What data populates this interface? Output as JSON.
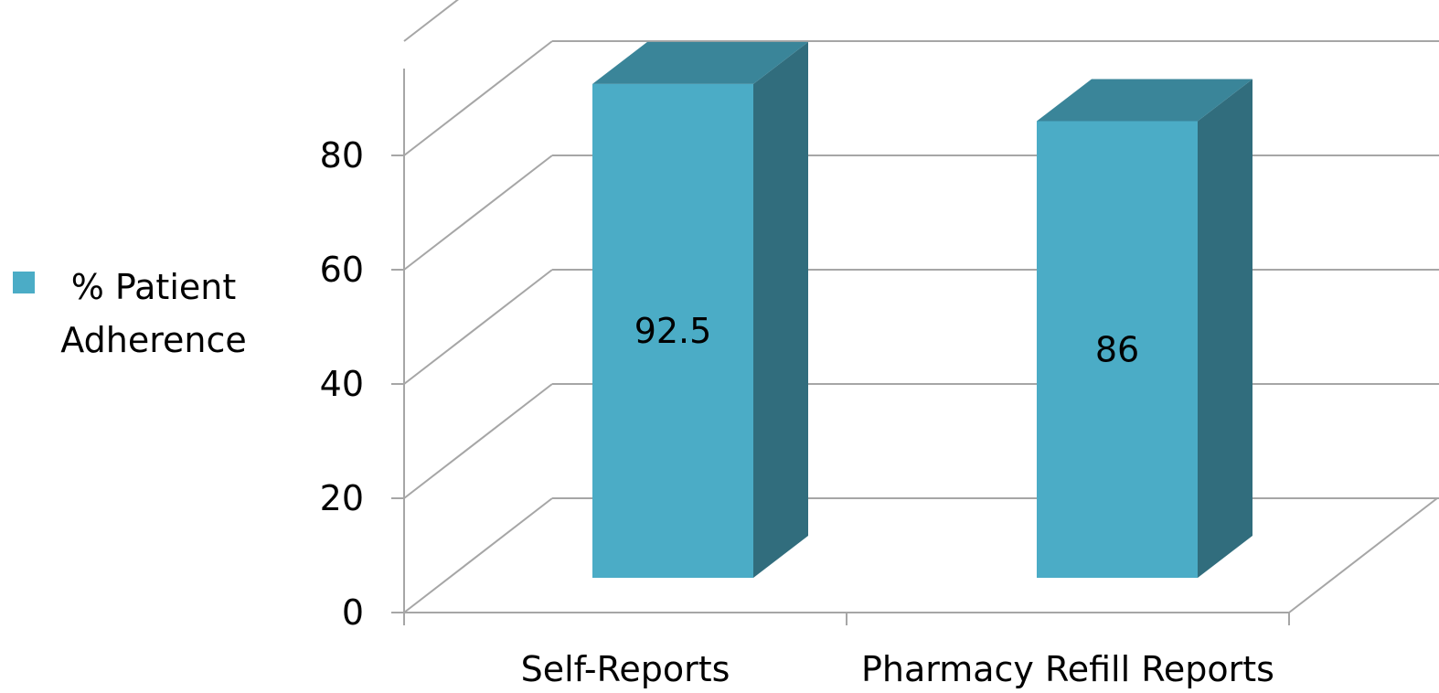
{
  "chart_data": {
    "type": "bar",
    "categories": [
      "Self-Reports",
      "Pharmacy Refill Reports"
    ],
    "series": [
      {
        "name": "% Patient Adherence",
        "values": [
          92.5,
          86
        ]
      }
    ],
    "data_labels": [
      "92.5",
      "86"
    ],
    "y_ticks": [
      "0",
      "20",
      "40",
      "60",
      "80"
    ],
    "ylim": [
      0,
      100
    ],
    "grid": true,
    "three_d": true,
    "legend_position": "left",
    "colors": {
      "bar_front": "#4bacc6",
      "bar_top": "#3a8599",
      "bar_side": "#316d7d",
      "grid": "#a6a6a6"
    }
  }
}
